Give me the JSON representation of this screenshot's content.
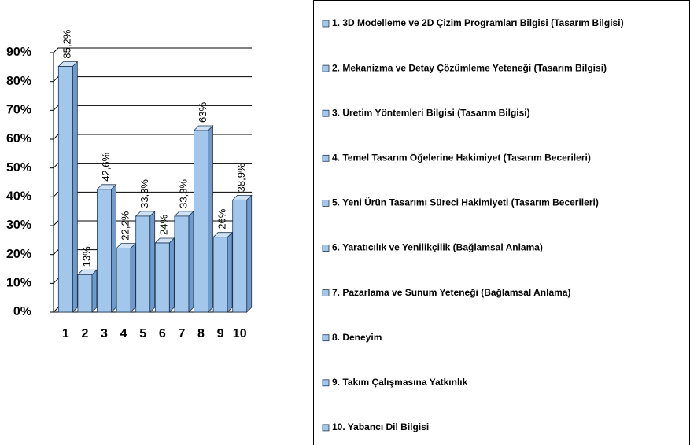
{
  "chart_data": {
    "type": "bar3d",
    "categories": [
      "1",
      "2",
      "3",
      "4",
      "5",
      "6",
      "7",
      "8",
      "9",
      "10"
    ],
    "values": [
      85.2,
      13,
      42.6,
      22.2,
      33.3,
      24,
      33.3,
      63,
      26,
      38.9
    ],
    "value_labels": [
      "85,2%",
      "13%",
      "42,6%",
      "22,2%",
      "33,3%",
      "24%",
      "33,3%",
      "63%",
      "26%",
      "38,9%"
    ],
    "color": "#a3c6eb",
    "ylim": [
      0,
      90
    ],
    "yticks": [
      {
        "value": 0,
        "label": "0%"
      },
      {
        "value": 10,
        "label": "10%"
      },
      {
        "value": 20,
        "label": "20%"
      },
      {
        "value": 30,
        "label": "30%"
      },
      {
        "value": 40,
        "label": "40%"
      },
      {
        "value": 50,
        "label": "50%"
      },
      {
        "value": 60,
        "label": "60%"
      },
      {
        "value": 70,
        "label": "70%"
      },
      {
        "value": 80,
        "label": "80%"
      },
      {
        "value": 90,
        "label": "90%"
      }
    ],
    "grid": true,
    "legend_labels": [
      "1. 3D Modelleme ve 2D Çizim Programları Bilgisi (Tasarım Bilgisi)",
      "2. Mekanizma ve Detay Çözümleme Yeteneği (Tasarım Bilgisi)",
      "3. Üretim Yöntemleri Bilgisi (Tasarım Bilgisi)",
      "4. Temel Tasarım Öğelerine Hakimiyet (Tasarım Becerileri)",
      "5. Yeni Ürün Tasarımı Süreci Hakimiyeti (Tasarım Becerileri)",
      "6. Yaratıcılık ve Yenilikçilik  (Bağlamsal Anlama)",
      "7. Pazarlama ve Sunum Yeteneği (Bağlamsal Anlama)",
      "8. Deneyim",
      "9. Takım Çalışmasına Yatkınlık",
      "10. Yabancı Dil Bilgisi"
    ]
  }
}
